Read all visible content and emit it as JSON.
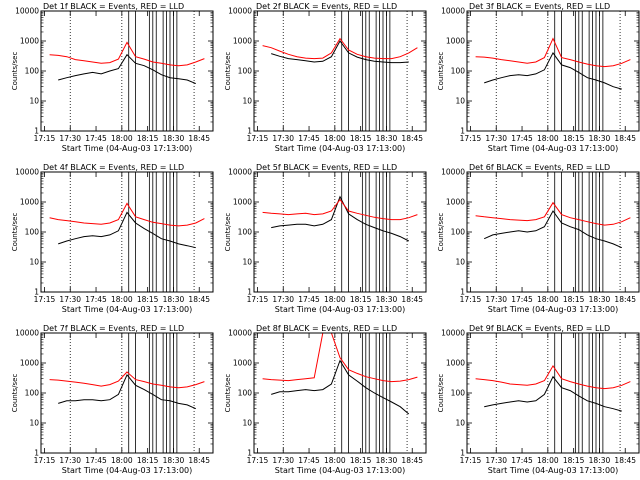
{
  "panels": [
    {
      "title": "Det 1f BLACK = Events, RED = LLD"
    },
    {
      "title": "Det 2f BLACK = Events, RED = LLD"
    },
    {
      "title": "Det 3f BLACK = Events, RED = LLD"
    },
    {
      "title": "Det 4f BLACK = Events, RED = LLD"
    },
    {
      "title": "Det 5f BLACK = Events, RED = LLD"
    },
    {
      "title": "Det 6f BLACK = Events, RED = LLD"
    },
    {
      "title": "Det 7f BLACK = Events, RED = LLD"
    },
    {
      "title": "Det 8f BLACK = Events, RED = LLD"
    },
    {
      "title": "Det 9f BLACK = Events, RED = LLD"
    }
  ],
  "axis": {
    "ylabel": "Counts/sec",
    "xlabel": "Start Time (04-Aug-03 17:13:00)",
    "xticks": [
      "17:15",
      "17:30",
      "17:45",
      "18:00",
      "18:15",
      "18:30",
      "18:45"
    ],
    "yticks": [
      "1",
      "10",
      "100",
      "1000",
      "10000"
    ]
  },
  "colors": {
    "events": "#000000",
    "lld": "#ff0000",
    "axes": "#000000"
  },
  "chart_data": {
    "type": "line",
    "layout": "3x3 grid of detector panels",
    "x_range_minutes": [
      0,
      100
    ],
    "y_scale": "log",
    "ylim": [
      1,
      10000
    ],
    "dotted_x_markers": [
      17,
      47,
      89
    ],
    "vertical_lines": [
      51,
      55,
      63,
      65,
      67,
      71,
      73,
      75,
      77,
      79
    ],
    "x": [
      5,
      10,
      15,
      20,
      25,
      30,
      35,
      40,
      45,
      50,
      55,
      60,
      65,
      70,
      75,
      80,
      85,
      90,
      95
    ],
    "series": [
      {
        "panel": 1,
        "name": "Events",
        "y": [
          null,
          50,
          60,
          70,
          80,
          90,
          80,
          100,
          120,
          350,
          180,
          150,
          110,
          75,
          60,
          55,
          50,
          38,
          null
        ]
      },
      {
        "panel": 1,
        "name": "LLD",
        "y": [
          350,
          330,
          300,
          240,
          220,
          200,
          180,
          190,
          250,
          900,
          300,
          250,
          200,
          180,
          160,
          150,
          160,
          200,
          260
        ]
      },
      {
        "panel": 2,
        "name": "Events",
        "y": [
          null,
          380,
          310,
          260,
          240,
          220,
          200,
          210,
          300,
          1000,
          400,
          290,
          240,
          210,
          200,
          190,
          190,
          200,
          null
        ]
      },
      {
        "panel": 2,
        "name": "LLD",
        "y": [
          700,
          600,
          460,
          360,
          300,
          270,
          260,
          270,
          400,
          1200,
          500,
          360,
          300,
          270,
          260,
          260,
          300,
          400,
          600
        ]
      },
      {
        "panel": 3,
        "name": "Events",
        "y": [
          null,
          40,
          50,
          60,
          70,
          75,
          70,
          80,
          110,
          400,
          160,
          130,
          90,
          60,
          50,
          40,
          30,
          25,
          null
        ]
      },
      {
        "panel": 3,
        "name": "LLD",
        "y": [
          300,
          290,
          270,
          240,
          220,
          200,
          180,
          200,
          280,
          1200,
          280,
          240,
          200,
          170,
          150,
          140,
          150,
          180,
          240
        ]
      },
      {
        "panel": 4,
        "name": "Events",
        "y": [
          null,
          40,
          50,
          60,
          70,
          75,
          70,
          80,
          110,
          450,
          200,
          130,
          90,
          60,
          50,
          40,
          35,
          30,
          null
        ]
      },
      {
        "panel": 4,
        "name": "LLD",
        "y": [
          300,
          260,
          240,
          220,
          200,
          190,
          180,
          200,
          260,
          900,
          320,
          260,
          210,
          190,
          170,
          160,
          170,
          200,
          280
        ]
      },
      {
        "panel": 5,
        "name": "Events",
        "y": [
          null,
          140,
          160,
          170,
          180,
          180,
          160,
          180,
          260,
          1500,
          400,
          260,
          180,
          140,
          110,
          90,
          70,
          50,
          null
        ]
      },
      {
        "panel": 5,
        "name": "LLD",
        "y": [
          450,
          420,
          400,
          380,
          400,
          420,
          380,
          400,
          500,
          1200,
          500,
          420,
          360,
          310,
          280,
          260,
          260,
          300,
          380
        ]
      },
      {
        "panel": 6,
        "name": "Events",
        "y": [
          null,
          60,
          80,
          90,
          100,
          110,
          100,
          110,
          150,
          500,
          200,
          150,
          120,
          80,
          60,
          50,
          40,
          30,
          null
        ]
      },
      {
        "panel": 6,
        "name": "LLD",
        "y": [
          350,
          320,
          300,
          280,
          260,
          250,
          240,
          260,
          320,
          950,
          380,
          300,
          260,
          220,
          190,
          170,
          180,
          220,
          300
        ]
      },
      {
        "panel": 7,
        "name": "Events",
        "y": [
          null,
          45,
          55,
          55,
          60,
          60,
          55,
          60,
          90,
          400,
          180,
          130,
          90,
          60,
          55,
          45,
          40,
          30,
          null
        ]
      },
      {
        "panel": 7,
        "name": "LLD",
        "y": [
          280,
          270,
          250,
          230,
          210,
          190,
          170,
          190,
          250,
          500,
          280,
          240,
          200,
          180,
          160,
          150,
          160,
          190,
          240
        ]
      },
      {
        "panel": 8,
        "name": "Events",
        "y": [
          null,
          90,
          110,
          110,
          120,
          130,
          120,
          130,
          200,
          1200,
          400,
          250,
          150,
          100,
          70,
          50,
          35,
          20,
          null
        ]
      },
      {
        "panel": 8,
        "name": "LLD",
        "y": [
          300,
          280,
          270,
          260,
          280,
          300,
          320,
          10000,
          10000,
          1500,
          600,
          450,
          350,
          300,
          260,
          240,
          250,
          280,
          340
        ]
      },
      {
        "panel": 9,
        "name": "Events",
        "y": [
          null,
          35,
          40,
          45,
          50,
          55,
          50,
          55,
          90,
          350,
          150,
          120,
          80,
          55,
          45,
          35,
          30,
          25,
          null
        ]
      },
      {
        "panel": 9,
        "name": "LLD",
        "y": [
          300,
          280,
          260,
          230,
          200,
          190,
          180,
          200,
          260,
          800,
          300,
          240,
          200,
          170,
          150,
          140,
          150,
          180,
          240
        ]
      }
    ]
  }
}
